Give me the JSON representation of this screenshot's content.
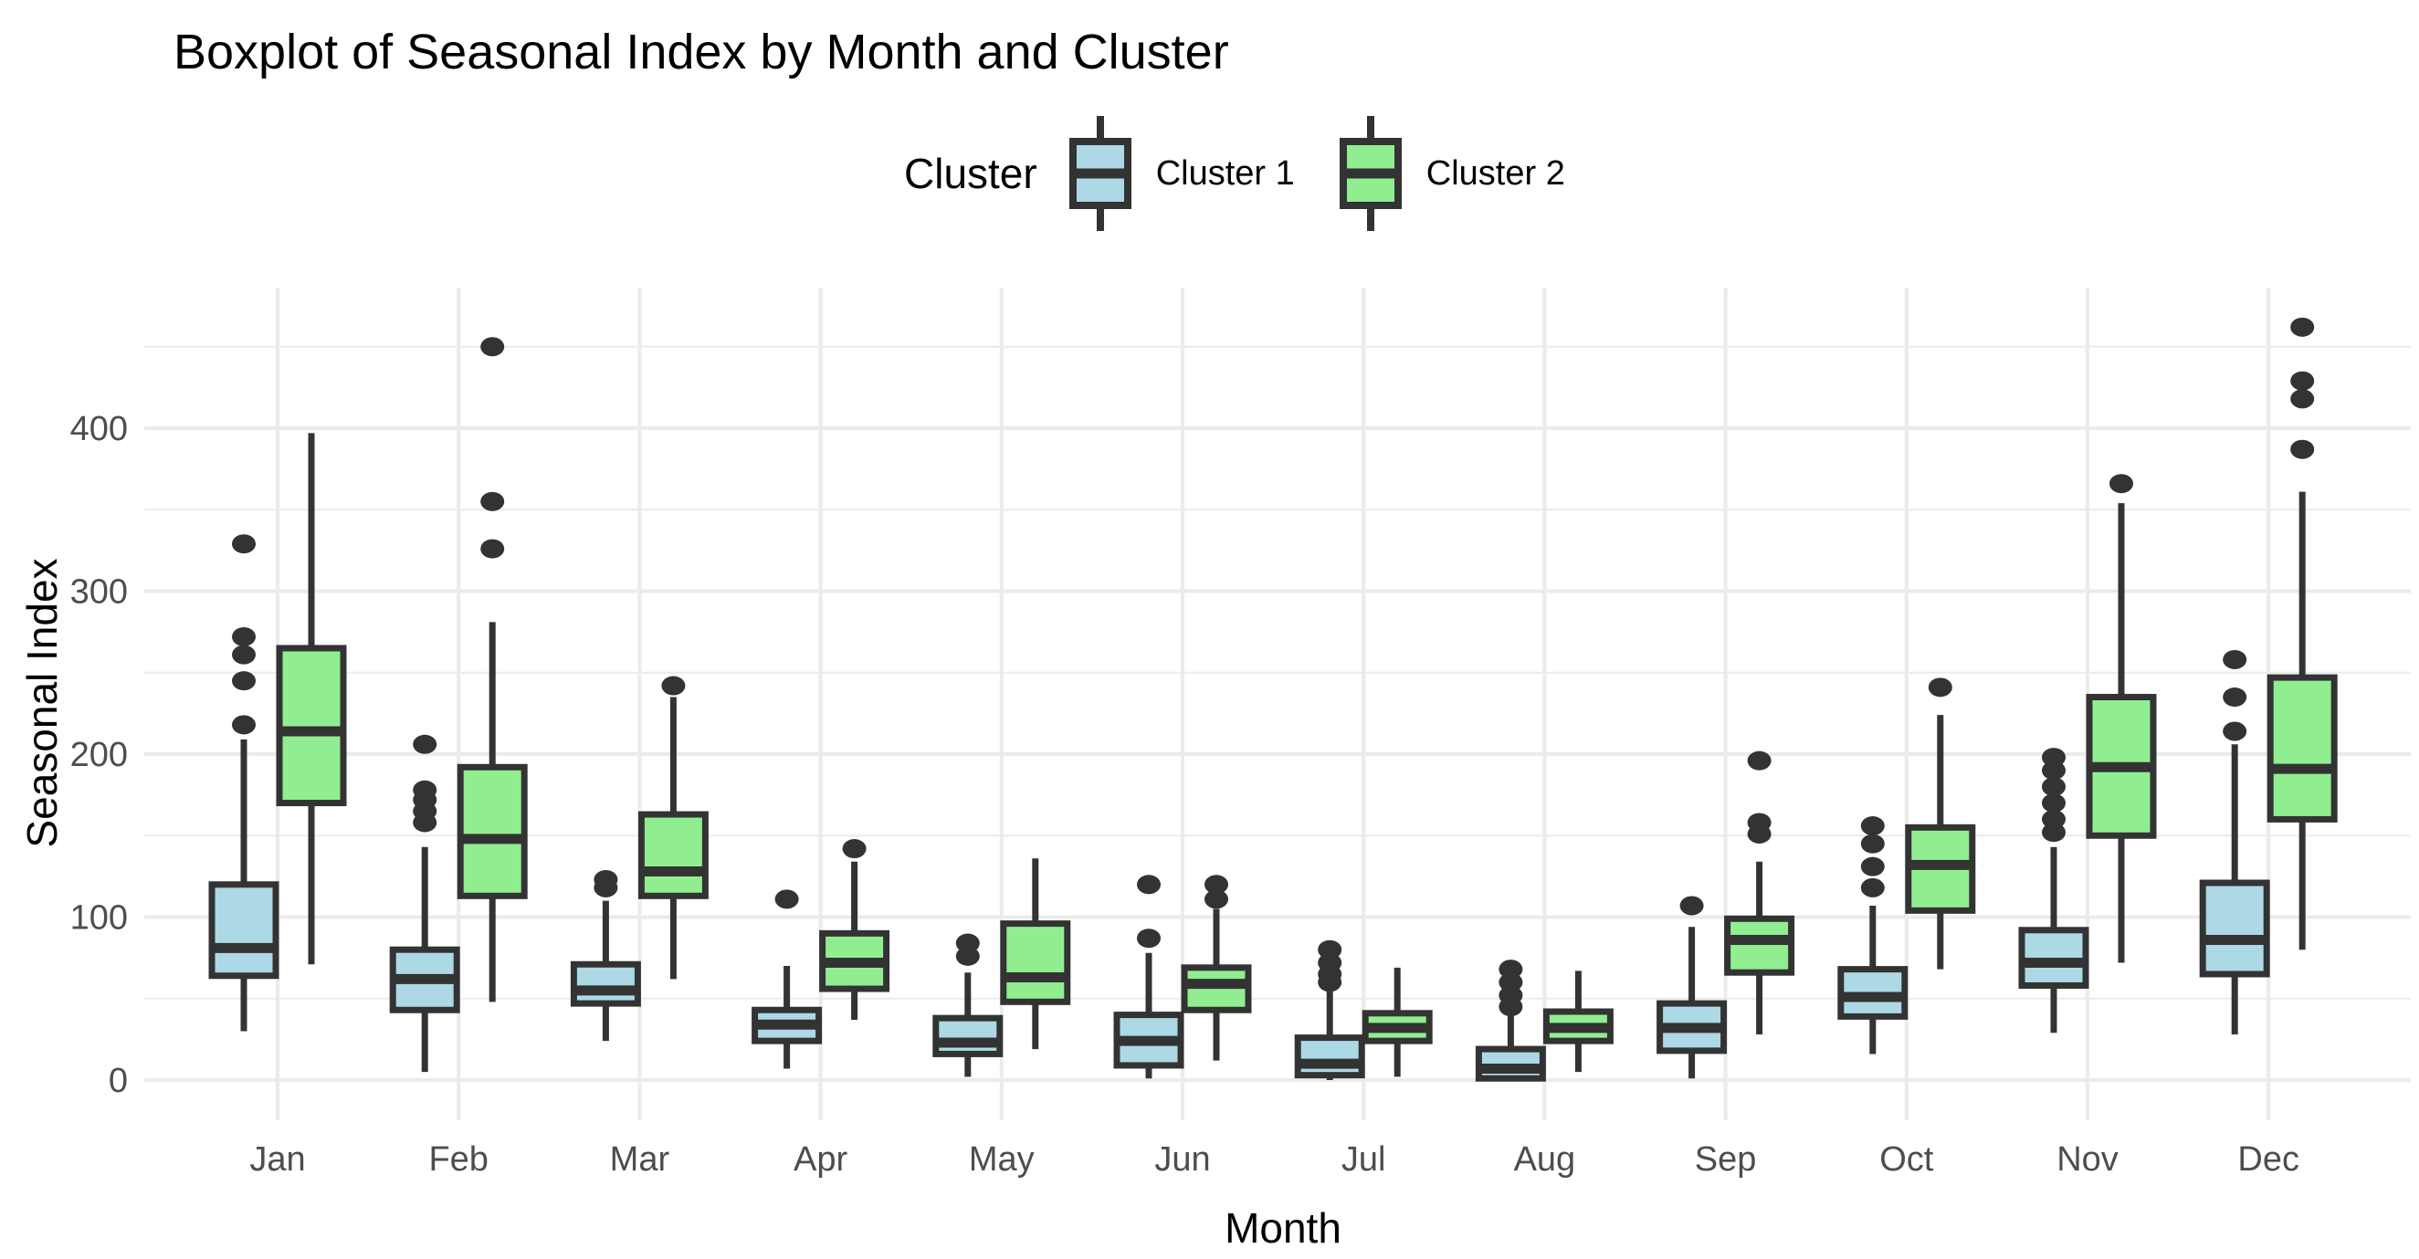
{
  "title": "Boxplot of Seasonal Index by Month and Cluster",
  "legend": {
    "title": "Cluster",
    "items": [
      {
        "label": "Cluster 1",
        "fill": "#ADD8E6"
      },
      {
        "label": "Cluster 2",
        "fill": "#90EE90"
      }
    ]
  },
  "axes": {
    "x_label": "Month",
    "y_label": "Seasonal Index"
  },
  "colors": {
    "box_stroke": "#333333",
    "outlier": "#333333",
    "gridline": "#EBEBEB",
    "tick_text": "#4D4D4D",
    "title_text": "#000000",
    "background": "#FFFFFF"
  },
  "chart_data": {
    "type": "boxplot",
    "title": "Boxplot of Seasonal Index by Month and Cluster",
    "xlabel": "Month",
    "ylabel": "Seasonal Index",
    "categories": [
      "Jan",
      "Feb",
      "Mar",
      "Apr",
      "May",
      "Jun",
      "Jul",
      "Aug",
      "Sep",
      "Oct",
      "Nov",
      "Dec"
    ],
    "y_ticks": [
      0,
      100,
      200,
      300,
      400
    ],
    "y_minor_ticks": [
      50,
      150,
      250,
      350,
      450
    ],
    "ylim": [
      -25,
      487
    ],
    "grid": true,
    "legend_position": "top",
    "series": [
      {
        "name": "Cluster 1",
        "fill": "#ADD8E6",
        "boxes": [
          {
            "low": 30,
            "q1": 64,
            "median": 81,
            "q3": 120,
            "high": 209,
            "outliers": [
              218,
              245,
              261,
              272,
              329
            ]
          },
          {
            "low": 5,
            "q1": 43,
            "median": 62,
            "q3": 80,
            "high": 143,
            "outliers": [
              158,
              165,
              172,
              178,
              206
            ]
          },
          {
            "low": 24,
            "q1": 47,
            "median": 55,
            "q3": 71,
            "high": 110,
            "outliers": [
              118,
              123
            ]
          },
          {
            "low": 7,
            "q1": 24,
            "median": 34,
            "q3": 43,
            "high": 70,
            "outliers": [
              111
            ]
          },
          {
            "low": 2,
            "q1": 16,
            "median": 23,
            "q3": 38,
            "high": 66,
            "outliers": [
              76,
              84
            ]
          },
          {
            "low": 1,
            "q1": 9,
            "median": 24,
            "q3": 40,
            "high": 78,
            "outliers": [
              87,
              120
            ]
          },
          {
            "low": 0,
            "q1": 3,
            "median": 10,
            "q3": 26,
            "high": 56,
            "outliers": [
              60,
              65,
              72,
              80
            ]
          },
          {
            "low": 0,
            "q1": 1,
            "median": 7,
            "q3": 19,
            "high": 40,
            "outliers": [
              45,
              52,
              60,
              68
            ]
          },
          {
            "low": 1,
            "q1": 18,
            "median": 32,
            "q3": 47,
            "high": 94,
            "outliers": [
              107
            ]
          },
          {
            "low": 16,
            "q1": 39,
            "median": 51,
            "q3": 68,
            "high": 107,
            "outliers": [
              118,
              131,
              145,
              156
            ]
          },
          {
            "low": 29,
            "q1": 58,
            "median": 72,
            "q3": 92,
            "high": 143,
            "outliers": [
              152,
              160,
              170,
              180,
              190,
              198
            ]
          },
          {
            "low": 28,
            "q1": 65,
            "median": 86,
            "q3": 121,
            "high": 206,
            "outliers": [
              214,
              235,
              258
            ]
          }
        ]
      },
      {
        "name": "Cluster 2",
        "fill": "#90EE90",
        "boxes": [
          {
            "low": 71,
            "q1": 170,
            "median": 214,
            "q3": 265,
            "high": 397,
            "outliers": []
          },
          {
            "low": 48,
            "q1": 113,
            "median": 148,
            "q3": 192,
            "high": 281,
            "outliers": [
              326,
              355,
              450
            ]
          },
          {
            "low": 62,
            "q1": 113,
            "median": 128,
            "q3": 163,
            "high": 235,
            "outliers": [
              242
            ]
          },
          {
            "low": 37,
            "q1": 56,
            "median": 72,
            "q3": 90,
            "high": 134,
            "outliers": [
              142
            ]
          },
          {
            "low": 19,
            "q1": 48,
            "median": 63,
            "q3": 96,
            "high": 136,
            "outliers": []
          },
          {
            "low": 12,
            "q1": 43,
            "median": 59,
            "q3": 69,
            "high": 105,
            "outliers": [
              111,
              120
            ]
          },
          {
            "low": 2,
            "q1": 24,
            "median": 32,
            "q3": 41,
            "high": 69,
            "outliers": []
          },
          {
            "low": 5,
            "q1": 24,
            "median": 32,
            "q3": 42,
            "high": 67,
            "outliers": []
          },
          {
            "low": 28,
            "q1": 66,
            "median": 86,
            "q3": 99,
            "high": 134,
            "outliers": [
              151,
              158,
              196
            ]
          },
          {
            "low": 68,
            "q1": 104,
            "median": 132,
            "q3": 155,
            "high": 224,
            "outliers": [
              241
            ]
          },
          {
            "low": 72,
            "q1": 150,
            "median": 192,
            "q3": 235,
            "high": 354,
            "outliers": [
              366
            ]
          },
          {
            "low": 80,
            "q1": 160,
            "median": 191,
            "q3": 247,
            "high": 361,
            "outliers": [
              387,
              418,
              429,
              462
            ]
          }
        ]
      }
    ]
  }
}
